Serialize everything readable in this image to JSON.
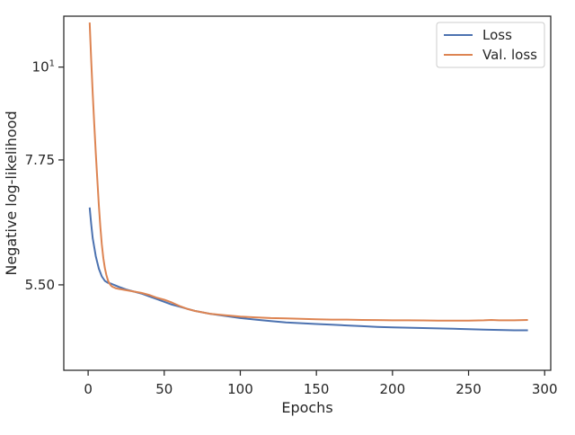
{
  "chart_data": {
    "type": "line",
    "title": "",
    "xlabel": "Epochs",
    "ylabel": "Negative log-likelihood",
    "yscale": "log",
    "xlim": [
      -16,
      304
    ],
    "ylim": [
      4.35,
      11.5
    ],
    "xticks": [
      0,
      50,
      100,
      150,
      200,
      250,
      300
    ],
    "yticks": [
      {
        "value": 10,
        "label": "10",
        "sup": "1"
      },
      {
        "value": 7.75,
        "label": "7.75",
        "sup": ""
      },
      {
        "value": 5.5,
        "label": "5.50",
        "sup": ""
      }
    ],
    "grid": false,
    "legend_position": "top-right",
    "series": [
      {
        "name": "Loss",
        "color": "#4c72b0",
        "points": [
          [
            1,
            6.8
          ],
          [
            2,
            6.5
          ],
          [
            3,
            6.25
          ],
          [
            5,
            5.95
          ],
          [
            7,
            5.75
          ],
          [
            9,
            5.63
          ],
          [
            11,
            5.56
          ],
          [
            13,
            5.53
          ],
          [
            15,
            5.52
          ],
          [
            20,
            5.47
          ],
          [
            25,
            5.43
          ],
          [
            30,
            5.4
          ],
          [
            35,
            5.37
          ],
          [
            40,
            5.33
          ],
          [
            45,
            5.29
          ],
          [
            50,
            5.25
          ],
          [
            55,
            5.21
          ],
          [
            60,
            5.18
          ],
          [
            65,
            5.15
          ],
          [
            70,
            5.12
          ],
          [
            75,
            5.1
          ],
          [
            80,
            5.08
          ],
          [
            90,
            5.05
          ],
          [
            100,
            5.02
          ],
          [
            110,
            5.0
          ],
          [
            120,
            4.98
          ],
          [
            130,
            4.96
          ],
          [
            140,
            4.95
          ],
          [
            150,
            4.94
          ],
          [
            160,
            4.93
          ],
          [
            170,
            4.92
          ],
          [
            180,
            4.91
          ],
          [
            190,
            4.9
          ],
          [
            200,
            4.895
          ],
          [
            210,
            4.89
          ],
          [
            220,
            4.885
          ],
          [
            230,
            4.88
          ],
          [
            240,
            4.875
          ],
          [
            250,
            4.87
          ],
          [
            260,
            4.865
          ],
          [
            270,
            4.86
          ],
          [
            280,
            4.855
          ],
          [
            289,
            4.855
          ]
        ]
      },
      {
        "name": "Val. loss",
        "color": "#dd8452",
        "points": [
          [
            1,
            11.3
          ],
          [
            2,
            10.2
          ],
          [
            3,
            9.3
          ],
          [
            4,
            8.55
          ],
          [
            5,
            7.9
          ],
          [
            6,
            7.35
          ],
          [
            7,
            6.85
          ],
          [
            8,
            6.45
          ],
          [
            9,
            6.15
          ],
          [
            10,
            5.92
          ],
          [
            11,
            5.76
          ],
          [
            12,
            5.65
          ],
          [
            13,
            5.57
          ],
          [
            14,
            5.52
          ],
          [
            15,
            5.49
          ],
          [
            16,
            5.47
          ],
          [
            18,
            5.45
          ],
          [
            20,
            5.44
          ],
          [
            25,
            5.42
          ],
          [
            30,
            5.4
          ],
          [
            35,
            5.38
          ],
          [
            40,
            5.35
          ],
          [
            45,
            5.31
          ],
          [
            50,
            5.28
          ],
          [
            55,
            5.24
          ],
          [
            60,
            5.19
          ],
          [
            65,
            5.15
          ],
          [
            70,
            5.12
          ],
          [
            75,
            5.1
          ],
          [
            80,
            5.08
          ],
          [
            90,
            5.06
          ],
          [
            100,
            5.04
          ],
          [
            110,
            5.03
          ],
          [
            120,
            5.02
          ],
          [
            130,
            5.015
          ],
          [
            140,
            5.01
          ],
          [
            150,
            5.005
          ],
          [
            160,
            5.0
          ],
          [
            170,
            5.0
          ],
          [
            180,
            4.995
          ],
          [
            190,
            4.993
          ],
          [
            200,
            4.99
          ],
          [
            210,
            4.99
          ],
          [
            220,
            4.988
          ],
          [
            230,
            4.985
          ],
          [
            240,
            4.985
          ],
          [
            250,
            4.985
          ],
          [
            260,
            4.99
          ],
          [
            265,
            4.995
          ],
          [
            270,
            4.99
          ],
          [
            280,
            4.99
          ],
          [
            289,
            4.995
          ]
        ]
      }
    ]
  }
}
